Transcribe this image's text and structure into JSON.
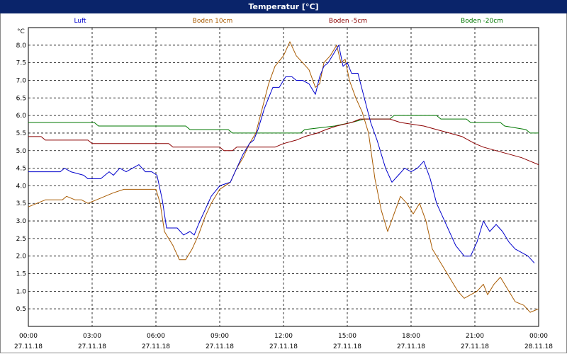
{
  "window": {
    "title": "Temperatur [°C]"
  },
  "chart_data": {
    "type": "line",
    "title": "Temperatur [°C]",
    "ylabel": "°C",
    "unit": "°C",
    "ylim": [
      0,
      8.5
    ],
    "grid": true,
    "legend_position": "top",
    "x_ticks": [
      {
        "time": "00:00",
        "date": "27.11.18"
      },
      {
        "time": "03:00",
        "date": "27.11.18"
      },
      {
        "time": "06:00",
        "date": "27.11.18"
      },
      {
        "time": "09:00",
        "date": "27.11.18"
      },
      {
        "time": "12:00",
        "date": "27.11.18"
      },
      {
        "time": "15:00",
        "date": "27.11.18"
      },
      {
        "time": "18:00",
        "date": "27.11.18"
      },
      {
        "time": "21:00",
        "date": "27.11.18"
      },
      {
        "time": "00:00",
        "date": "28.11.18"
      }
    ],
    "y_ticks": [
      "0.5",
      "1.0",
      "1.5",
      "2.0",
      "2.5",
      "3.0",
      "3.5",
      "4.0",
      "4.5",
      "5.0",
      "5.5",
      "6.0",
      "6.5",
      "7.0",
      "7.5",
      "8.0"
    ],
    "series": [
      {
        "name": "Luft",
        "color": "#0000cc",
        "points": [
          [
            0,
            4.4
          ],
          [
            1.5,
            4.4
          ],
          [
            1.7,
            4.5
          ],
          [
            2.0,
            4.4
          ],
          [
            2.6,
            4.3
          ],
          [
            2.8,
            4.2
          ],
          [
            3.4,
            4.2
          ],
          [
            3.8,
            4.4
          ],
          [
            4.0,
            4.3
          ],
          [
            4.3,
            4.5
          ],
          [
            4.6,
            4.4
          ],
          [
            4.9,
            4.5
          ],
          [
            5.2,
            4.6
          ],
          [
            5.5,
            4.4
          ],
          [
            5.8,
            4.4
          ],
          [
            6.05,
            4.3
          ],
          [
            6.3,
            3.6
          ],
          [
            6.5,
            2.8
          ],
          [
            7.0,
            2.8
          ],
          [
            7.3,
            2.6
          ],
          [
            7.6,
            2.7
          ],
          [
            7.8,
            2.6
          ],
          [
            8.0,
            2.9
          ],
          [
            8.3,
            3.3
          ],
          [
            8.6,
            3.7
          ],
          [
            9.0,
            4.0
          ],
          [
            9.5,
            4.1
          ],
          [
            9.8,
            4.5
          ],
          [
            10.1,
            4.9
          ],
          [
            10.4,
            5.2
          ],
          [
            10.6,
            5.3
          ],
          [
            10.8,
            5.6
          ],
          [
            11.1,
            6.2
          ],
          [
            11.5,
            6.8
          ],
          [
            11.8,
            6.8
          ],
          [
            12.1,
            7.1
          ],
          [
            12.4,
            7.1
          ],
          [
            12.6,
            7.0
          ],
          [
            12.9,
            7.0
          ],
          [
            13.2,
            6.9
          ],
          [
            13.5,
            6.6
          ],
          [
            13.7,
            7.1
          ],
          [
            13.9,
            7.4
          ],
          [
            14.1,
            7.5
          ],
          [
            14.4,
            7.8
          ],
          [
            14.6,
            8.0
          ],
          [
            14.8,
            7.4
          ],
          [
            15.0,
            7.5
          ],
          [
            15.2,
            7.2
          ],
          [
            15.5,
            7.2
          ],
          [
            15.8,
            6.5
          ],
          [
            16.1,
            5.8
          ],
          [
            16.4,
            5.3
          ],
          [
            16.8,
            4.5
          ],
          [
            17.1,
            4.1
          ],
          [
            17.4,
            4.3
          ],
          [
            17.7,
            4.5
          ],
          [
            18.0,
            4.4
          ],
          [
            18.3,
            4.5
          ],
          [
            18.6,
            4.7
          ],
          [
            18.9,
            4.2
          ],
          [
            19.2,
            3.5
          ],
          [
            19.5,
            3.1
          ],
          [
            19.8,
            2.7
          ],
          [
            20.1,
            2.3
          ],
          [
            20.5,
            2.0
          ],
          [
            20.8,
            2.0
          ],
          [
            21.1,
            2.4
          ],
          [
            21.4,
            3.0
          ],
          [
            21.7,
            2.7
          ],
          [
            22.0,
            2.9
          ],
          [
            22.3,
            2.7
          ],
          [
            22.6,
            2.4
          ],
          [
            22.9,
            2.2
          ],
          [
            23.2,
            2.1
          ],
          [
            23.5,
            2.0
          ],
          [
            23.8,
            1.8
          ]
        ]
      },
      {
        "name": "Boden 10cm",
        "color": "#a85a00",
        "points": [
          [
            0,
            3.4
          ],
          [
            0.4,
            3.5
          ],
          [
            0.8,
            3.6
          ],
          [
            1.6,
            3.6
          ],
          [
            1.8,
            3.7
          ],
          [
            2.2,
            3.6
          ],
          [
            2.5,
            3.6
          ],
          [
            2.8,
            3.5
          ],
          [
            3.2,
            3.6
          ],
          [
            3.6,
            3.7
          ],
          [
            4.0,
            3.8
          ],
          [
            4.5,
            3.9
          ],
          [
            5.0,
            3.9
          ],
          [
            6.0,
            3.9
          ],
          [
            6.2,
            3.5
          ],
          [
            6.4,
            2.7
          ],
          [
            6.8,
            2.3
          ],
          [
            7.1,
            1.9
          ],
          [
            7.4,
            1.9
          ],
          [
            7.7,
            2.2
          ],
          [
            8.0,
            2.6
          ],
          [
            8.3,
            3.1
          ],
          [
            8.6,
            3.5
          ],
          [
            9.0,
            3.9
          ],
          [
            9.5,
            4.1
          ],
          [
            9.8,
            4.5
          ],
          [
            10.1,
            4.8
          ],
          [
            10.4,
            5.2
          ],
          [
            10.7,
            5.5
          ],
          [
            11.0,
            6.2
          ],
          [
            11.3,
            6.9
          ],
          [
            11.6,
            7.4
          ],
          [
            12.0,
            7.7
          ],
          [
            12.3,
            8.1
          ],
          [
            12.6,
            7.7
          ],
          [
            12.9,
            7.5
          ],
          [
            13.2,
            7.3
          ],
          [
            13.5,
            6.8
          ],
          [
            13.7,
            6.9
          ],
          [
            13.9,
            7.5
          ],
          [
            14.2,
            7.7
          ],
          [
            14.5,
            8.0
          ],
          [
            14.7,
            7.5
          ],
          [
            14.9,
            7.6
          ],
          [
            15.1,
            7.0
          ],
          [
            15.4,
            6.5
          ],
          [
            15.7,
            6.1
          ],
          [
            16.0,
            5.5
          ],
          [
            16.3,
            4.2
          ],
          [
            16.6,
            3.3
          ],
          [
            16.9,
            2.7
          ],
          [
            17.2,
            3.2
          ],
          [
            17.5,
            3.7
          ],
          [
            17.8,
            3.5
          ],
          [
            18.1,
            3.2
          ],
          [
            18.4,
            3.5
          ],
          [
            18.7,
            3.0
          ],
          [
            19.0,
            2.2
          ],
          [
            19.4,
            1.8
          ],
          [
            19.8,
            1.4
          ],
          [
            20.2,
            1.0
          ],
          [
            20.5,
            0.8
          ],
          [
            20.8,
            0.9
          ],
          [
            21.1,
            1.0
          ],
          [
            21.4,
            1.2
          ],
          [
            21.6,
            0.9
          ],
          [
            21.9,
            1.2
          ],
          [
            22.2,
            1.4
          ],
          [
            22.5,
            1.1
          ],
          [
            22.9,
            0.7
          ],
          [
            23.3,
            0.6
          ],
          [
            23.6,
            0.4
          ],
          [
            24.0,
            0.5
          ]
        ]
      },
      {
        "name": "Boden -5cm",
        "color": "#8b0000",
        "points": [
          [
            0,
            5.4
          ],
          [
            0.6,
            5.4
          ],
          [
            0.8,
            5.3
          ],
          [
            2.8,
            5.3
          ],
          [
            3.0,
            5.2
          ],
          [
            6.6,
            5.2
          ],
          [
            6.8,
            5.1
          ],
          [
            9.0,
            5.1
          ],
          [
            9.2,
            5.0
          ],
          [
            9.6,
            5.0
          ],
          [
            9.8,
            5.1
          ],
          [
            11.6,
            5.1
          ],
          [
            12.0,
            5.2
          ],
          [
            12.6,
            5.3
          ],
          [
            13.0,
            5.4
          ],
          [
            13.6,
            5.5
          ],
          [
            14.0,
            5.6
          ],
          [
            14.5,
            5.7
          ],
          [
            15.2,
            5.8
          ],
          [
            15.6,
            5.9
          ],
          [
            17.0,
            5.9
          ],
          [
            17.5,
            5.8
          ],
          [
            18.6,
            5.7
          ],
          [
            19.2,
            5.6
          ],
          [
            19.8,
            5.5
          ],
          [
            20.4,
            5.4
          ],
          [
            21.0,
            5.2
          ],
          [
            21.4,
            5.1
          ],
          [
            22.0,
            5.0
          ],
          [
            22.6,
            4.9
          ],
          [
            23.2,
            4.8
          ],
          [
            23.6,
            4.7
          ],
          [
            24.0,
            4.6
          ]
        ]
      },
      {
        "name": "Boden -20cm",
        "color": "#007700",
        "points": [
          [
            0,
            5.8
          ],
          [
            3.1,
            5.8
          ],
          [
            3.3,
            5.7
          ],
          [
            7.4,
            5.7
          ],
          [
            7.6,
            5.6
          ],
          [
            9.4,
            5.6
          ],
          [
            9.6,
            5.5
          ],
          [
            12.8,
            5.5
          ],
          [
            13.0,
            5.6
          ],
          [
            14.4,
            5.7
          ],
          [
            15.2,
            5.8
          ],
          [
            15.8,
            5.9
          ],
          [
            17.0,
            5.9
          ],
          [
            17.2,
            6.0
          ],
          [
            19.2,
            6.0
          ],
          [
            19.4,
            5.9
          ],
          [
            20.6,
            5.9
          ],
          [
            20.8,
            5.8
          ],
          [
            22.2,
            5.8
          ],
          [
            22.4,
            5.7
          ],
          [
            23.4,
            5.6
          ],
          [
            23.6,
            5.5
          ],
          [
            24.0,
            5.5
          ]
        ]
      }
    ]
  }
}
